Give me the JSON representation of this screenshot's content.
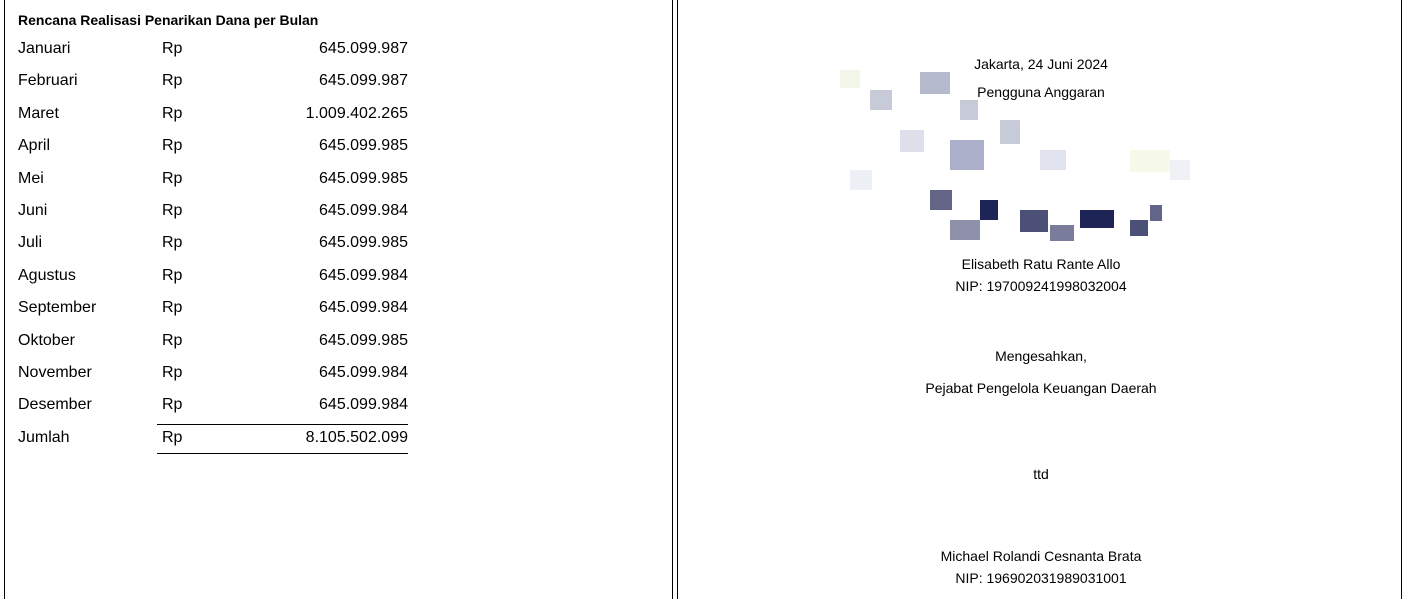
{
  "table": {
    "title": "Rencana Realisasi Penarikan Dana per Bulan",
    "currency": "Rp",
    "rows": [
      [
        "Januari",
        "645.099.987"
      ],
      [
        "Februari",
        "645.099.987"
      ],
      [
        "Maret",
        "1.009.402.265"
      ],
      [
        "April",
        "645.099.985"
      ],
      [
        "Mei",
        "645.099.985"
      ],
      [
        "Juni",
        "645.099.984"
      ],
      [
        "Juli",
        "645.099.985"
      ],
      [
        "Agustus",
        "645.099.984"
      ],
      [
        "September",
        "645.099.984"
      ],
      [
        "Oktober",
        "645.099.985"
      ],
      [
        "November",
        "645.099.984"
      ],
      [
        "Desember",
        "645.099.984"
      ]
    ],
    "total": [
      "Jumlah",
      "8.105.502.099"
    ]
  },
  "signatures": {
    "place_date": "Jakarta, 24 Juni 2024",
    "role1": "Pengguna Anggaran",
    "name1": "Elisabeth Ratu Rante Allo",
    "nip1": "NIP: 197009241998032004",
    "approval": "Mengesahkan,",
    "role2": "Pejabat Pengelola Keuangan Daerah",
    "signed": "ttd",
    "name2": "Michael Rolandi Cesnanta Brata",
    "nip2": "NIP: 196902031989031001"
  }
}
